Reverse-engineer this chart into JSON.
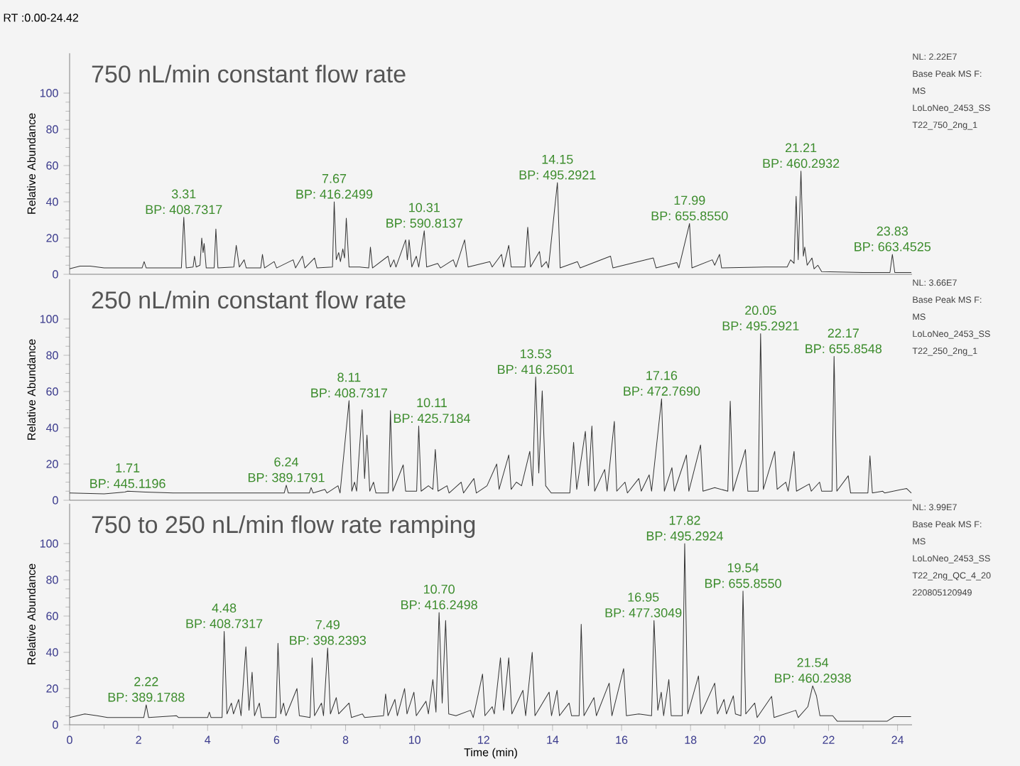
{
  "chart_data": [
    {
      "type": "line",
      "subtitle": "RT :0.00-24.42",
      "title": "750 nL/min constant flow rate",
      "ylabel": "Relative Abundance",
      "xlim": [
        0,
        24.42
      ],
      "ylim": [
        0,
        122
      ],
      "yticks": [
        0,
        20,
        40,
        60,
        80,
        100
      ],
      "tick_labels": "y",
      "series": [
        {
          "color": "#333333",
          "x": [
            0,
            0.3,
            0.6,
            1.0,
            2.1,
            2.16,
            2.22,
            3.24,
            3.31,
            3.38,
            3.58,
            3.62,
            3.67,
            3.78,
            3.83,
            3.87,
            3.9,
            3.96,
            4.19,
            4.24,
            4.3,
            4.76,
            4.83,
            4.92,
            5.06,
            5.12,
            5.54,
            5.59,
            5.65,
            5.93,
            6.0,
            6.48,
            6.55,
            6.75,
            6.82,
            7.1,
            7.17,
            7.62,
            7.67,
            7.73,
            7.8,
            7.85,
            7.92,
            7.97,
            8.02,
            8.1,
            8.41,
            8.67,
            8.72,
            8.78,
            9.23,
            9.3,
            9.4,
            9.46,
            9.74,
            9.79,
            9.84,
            9.92,
            10.05,
            10.12,
            10.28,
            10.35,
            10.67,
            10.75,
            11.12,
            11.2,
            11.45,
            11.55,
            12.18,
            12.25,
            12.52,
            12.58,
            12.73,
            12.8,
            13.2,
            13.28,
            13.36,
            13.62,
            13.68,
            13.82,
            13.88,
            14.14,
            14.22,
            14.72,
            14.8,
            15.68,
            15.75,
            16.92,
            17.0,
            17.6,
            17.66,
            17.97,
            18.04,
            18.63,
            18.7,
            18.84,
            18.9,
            20.17,
            20.8,
            20.9,
            21.0,
            21.06,
            21.12,
            21.2,
            21.27,
            21.31,
            21.38,
            21.52,
            21.58,
            21.69,
            21.8,
            23.0,
            23.78,
            23.85,
            23.92,
            24.4
          ],
          "values": [
            3,
            4.5,
            4.5,
            3.5,
            3.5,
            7,
            3.5,
            3.5,
            31.5,
            3.5,
            4,
            10,
            4,
            5,
            20,
            12,
            17,
            3.5,
            3.5,
            25,
            3.5,
            4,
            16,
            4,
            8,
            3.5,
            3.5,
            11,
            3.5,
            7,
            3.5,
            8,
            3.5,
            10,
            3.5,
            9,
            3.5,
            4,
            40,
            8,
            12,
            7,
            14,
            9,
            31,
            4,
            4,
            3.5,
            15,
            3.5,
            10,
            4,
            8,
            4,
            19,
            8,
            19,
            4,
            10,
            4,
            24,
            4,
            6,
            3.5,
            8,
            4,
            19,
            4,
            7,
            4,
            11,
            4,
            16,
            4,
            4,
            26,
            4,
            12.6,
            4,
            7,
            3.5,
            50.6,
            3.5,
            7,
            3.5,
            10,
            3.5,
            9,
            3.5,
            6.5,
            3.5,
            28,
            3.5,
            8,
            5,
            11,
            3.5,
            4,
            4,
            8,
            6,
            43,
            8,
            57,
            10,
            15,
            5,
            9,
            3,
            5,
            1.5,
            1,
            1,
            11,
            1,
            1
          ]
        }
      ],
      "annotations": [
        {
          "text": "3.31",
          "x": 3.31,
          "y": 31.5
        },
        {
          "text": "BP: 408.7317",
          "x": 3.31,
          "y": 31.5
        },
        {
          "text": "7.67",
          "x": 7.67,
          "y": 40
        },
        {
          "text": "BP: 416.2499",
          "x": 7.67,
          "y": 40
        },
        {
          "text": "10.31",
          "x": 10.28,
          "y": 24
        },
        {
          "text": "BP: 590.8137",
          "x": 10.28,
          "y": 24
        },
        {
          "text": "14.15",
          "x": 14.14,
          "y": 50.6
        },
        {
          "text": "BP: 495.2921",
          "x": 14.14,
          "y": 50.6
        },
        {
          "text": "17.99",
          "x": 17.97,
          "y": 28
        },
        {
          "text": "BP: 655.8550",
          "x": 17.97,
          "y": 28
        },
        {
          "text": "21.21",
          "x": 21.2,
          "y": 57
        },
        {
          "text": "BP: 460.2932",
          "x": 21.2,
          "y": 57
        },
        {
          "text": "23.83",
          "x": 23.85,
          "y": 11
        },
        {
          "text": "BP: 663.4525",
          "x": 23.85,
          "y": 11
        },
        "NL: 2.22E7",
        "Base Peak MS  F:",
        "MS",
        "LoLoNeo_2453_SS",
        "T22_750_2ng_1"
      ]
    },
    {
      "type": "line",
      "title": "250 nL/min constant flow rate",
      "ylabel": "Relative Abundance",
      "xlim": [
        0,
        24.42
      ],
      "ylim": [
        0,
        122
      ],
      "yticks": [
        0,
        20,
        40,
        60,
        80,
        100
      ],
      "tick_labels": "y",
      "series": [
        {
          "color": "#333333",
          "x": [
            0,
            1.0,
            1.6,
            1.68,
            2.2,
            3.0,
            5.8,
            6.22,
            6.28,
            6.34,
            6.95,
            7.0,
            7.06,
            7.4,
            7.46,
            7.78,
            7.84,
            8.1,
            8.18,
            8.26,
            8.32,
            8.48,
            8.55,
            8.62,
            8.7,
            8.81,
            8.88,
            9.24,
            9.3,
            9.37,
            9.67,
            9.74,
            10.06,
            10.12,
            10.19,
            10.4,
            10.53,
            10.6,
            10.68,
            10.94,
            11.0,
            11.35,
            11.42,
            11.72,
            11.79,
            12.1,
            12.38,
            12.45,
            12.73,
            12.8,
            12.95,
            13.1,
            13.34,
            13.42,
            13.51,
            13.6,
            13.7,
            13.8,
            13.96,
            14.5,
            14.61,
            14.7,
            14.95,
            15.04,
            15.14,
            15.22,
            15.51,
            15.58,
            15.79,
            15.86,
            16.1,
            16.17,
            16.5,
            16.57,
            16.8,
            16.87,
            17.16,
            17.24,
            17.46,
            17.53,
            17.88,
            17.95,
            18.29,
            18.36,
            18.7,
            19.08,
            19.15,
            19.23,
            19.59,
            19.66,
            19.96,
            20.03,
            20.11,
            20.44,
            20.51,
            20.76,
            20.83,
            21.0,
            21.07,
            21.44,
            21.5,
            21.74,
            21.8,
            22.1,
            22.16,
            22.24,
            22.57,
            22.64,
            23.14,
            23.2,
            23.27,
            23.57,
            23.63,
            24.26,
            24.4
          ],
          "values": [
            4,
            3.5,
            4.5,
            5,
            4.5,
            4,
            4,
            4,
            8.3,
            4,
            4,
            7,
            4,
            6,
            4,
            8,
            4,
            55,
            5,
            10,
            5,
            50,
            12,
            36,
            5,
            10,
            4,
            4,
            49.5,
            5,
            19.5,
            5,
            5,
            41,
            5,
            8,
            6,
            28,
            5,
            8,
            4,
            10,
            4,
            12,
            4,
            8,
            20,
            6,
            25,
            6,
            10,
            8,
            27,
            8,
            68,
            15,
            60.4,
            8,
            4,
            4,
            32,
            6,
            38,
            8,
            41,
            5,
            17,
            5,
            43.5,
            5,
            10,
            4,
            12,
            5,
            14,
            5,
            56,
            5,
            18,
            5,
            25,
            5,
            30.5,
            5,
            7,
            5,
            54.7,
            5,
            28,
            5,
            5,
            92,
            6,
            27,
            6,
            10,
            5,
            27,
            5,
            9,
            5,
            10,
            5,
            5,
            79.4,
            5,
            13.5,
            4,
            4,
            24.5,
            4,
            5,
            4,
            6.5,
            4
          ]
        }
      ],
      "annotations": [
        {
          "text": "1.71",
          "x": 1.68,
          "y": 5
        },
        {
          "text": "BP: 445.1196",
          "x": 1.68,
          "y": 5
        },
        {
          "text": "6.24",
          "x": 6.28,
          "y": 8.3
        },
        {
          "text": "BP: 389.1791",
          "x": 6.28,
          "y": 8.3
        },
        {
          "text": "8.11",
          "x": 8.1,
          "y": 55
        },
        {
          "text": "BP: 408.7317",
          "x": 8.1,
          "y": 55
        },
        {
          "text": "10.11",
          "x": 10.12,
          "y": 41
        },
        {
          "text": "BP: 425.7184",
          "x": 10.12,
          "y": 41
        },
        {
          "text": "13.53",
          "x": 13.51,
          "y": 68
        },
        {
          "text": "BP: 416.2501",
          "x": 13.51,
          "y": 68
        },
        {
          "text": "17.16",
          "x": 17.16,
          "y": 56
        },
        {
          "text": "BP: 472.7690",
          "x": 17.16,
          "y": 56
        },
        {
          "text": "20.05",
          "x": 20.03,
          "y": 92
        },
        {
          "text": "BP: 495.2921",
          "x": 20.03,
          "y": 92
        },
        {
          "text": "22.17",
          "x": 22.16,
          "y": 79.4
        },
        {
          "text": "BP: 655.8548",
          "x": 22.16,
          "y": 79.4
        },
        "NL: 3.66E7",
        "Base Peak MS  F:",
        "MS",
        "LoLoNeo_2453_SS",
        "T22_250_2ng_1"
      ]
    },
    {
      "type": "line",
      "title": "750 to 250 nL/min flow rate ramping",
      "xlabel": "Time (min)",
      "ylabel": "Relative Abundance",
      "xlim": [
        0,
        24.42
      ],
      "ylim": [
        0,
        122
      ],
      "xticks": [
        0,
        2,
        4,
        6,
        8,
        10,
        12,
        14,
        16,
        18,
        20,
        22,
        24
      ],
      "yticks": [
        0,
        20,
        40,
        60,
        80,
        100
      ],
      "series": [
        {
          "color": "#333333",
          "x": [
            0,
            0.44,
            0.8,
            1.1,
            2.15,
            2.22,
            2.29,
            3.1,
            3.16,
            4.0,
            4.05,
            4.1,
            4.42,
            4.48,
            4.56,
            4.69,
            4.75,
            4.9,
            4.97,
            5.11,
            5.2,
            5.29,
            5.36,
            5.5,
            5.56,
            5.98,
            6.04,
            6.12,
            6.2,
            6.27,
            6.59,
            6.66,
            6.97,
            7.03,
            7.1,
            7.3,
            7.36,
            7.48,
            7.56,
            7.73,
            7.8,
            8.1,
            8.17,
            8.49,
            8.55,
            9.1,
            9.16,
            9.23,
            9.43,
            9.5,
            9.71,
            9.78,
            9.98,
            10.05,
            10.33,
            10.4,
            10.53,
            10.62,
            10.71,
            10.8,
            10.9,
            10.99,
            11.2,
            11.62,
            11.7,
            11.97,
            12.04,
            12.25,
            12.31,
            12.49,
            12.58,
            12.73,
            12.82,
            13.14,
            13.22,
            13.41,
            13.49,
            13.9,
            13.97,
            14.13,
            14.2,
            14.48,
            14.55,
            14.77,
            14.83,
            14.91,
            15.2,
            15.27,
            15.64,
            15.72,
            16.06,
            16.14,
            16.5,
            16.87,
            16.94,
            17.05,
            17.15,
            17.22,
            17.37,
            17.44,
            17.76,
            17.83,
            17.92,
            18.23,
            18.3,
            18.7,
            18.78,
            18.97,
            19.04,
            19.24,
            19.3,
            19.46,
            19.52,
            19.6,
            19.86,
            19.93,
            20.35,
            20.42,
            21.05,
            21.12,
            21.4,
            21.54,
            21.65,
            21.75,
            22.12,
            22.25,
            22.4,
            23.7,
            23.9,
            24.39
          ],
          "values": [
            4,
            6,
            5,
            4,
            4,
            11,
            4,
            5,
            4,
            4,
            7,
            4,
            4,
            51.6,
            6,
            12,
            6,
            14,
            5,
            43,
            8,
            29,
            5,
            12,
            4,
            4,
            45,
            6,
            12,
            5,
            20,
            5,
            4,
            37,
            5,
            12,
            5,
            42.4,
            6,
            15,
            6,
            12,
            4,
            6,
            4,
            5,
            17,
            5,
            14,
            5,
            20,
            6,
            18,
            5,
            13,
            6,
            25,
            7,
            62,
            12,
            57.6,
            6,
            5,
            8,
            4,
            28,
            5,
            10,
            6,
            37,
            8,
            37,
            6,
            19,
            5,
            40,
            5,
            18,
            5,
            19,
            5,
            12,
            5,
            5,
            55.5,
            5,
            15,
            5,
            23,
            5,
            31,
            5,
            6,
            5,
            57.6,
            8,
            18,
            5,
            25,
            5,
            5,
            100,
            6,
            27,
            6,
            23,
            6,
            14,
            6,
            16,
            6,
            5,
            73.8,
            6,
            12,
            4,
            15.7,
            4,
            8,
            4,
            10,
            21.5,
            16,
            5,
            5,
            2,
            2,
            2,
            4.5,
            4.5
          ]
        }
      ],
      "annotations": [
        {
          "text": "2.22",
          "x": 2.22,
          "y": 11
        },
        {
          "text": "BP: 389.1788",
          "x": 2.22,
          "y": 11
        },
        {
          "text": "4.48",
          "x": 4.48,
          "y": 51.6
        },
        {
          "text": "BP: 408.7317",
          "x": 4.48,
          "y": 51.6
        },
        {
          "text": "7.49",
          "x": 7.48,
          "y": 42.4
        },
        {
          "text": "BP: 398.2393",
          "x": 7.48,
          "y": 42.4
        },
        {
          "text": "10.70",
          "x": 10.71,
          "y": 62
        },
        {
          "text": "BP: 416.2498",
          "x": 10.71,
          "y": 62
        },
        {
          "text": "16.95",
          "x": 16.94,
          "y": 57.6
        },
        {
          "text": "BP: 477.3049",
          "x": 16.94,
          "y": 57.6
        },
        {
          "text": "17.82",
          "x": 17.83,
          "y": 100
        },
        {
          "text": "BP: 495.2924",
          "x": 17.83,
          "y": 100
        },
        {
          "text": "19.54",
          "x": 19.52,
          "y": 73.8
        },
        {
          "text": "BP: 655.8550",
          "x": 19.52,
          "y": 73.8
        },
        {
          "text": "21.54",
          "x": 21.54,
          "y": 21.5
        },
        {
          "text": "BP: 460.2938",
          "x": 21.54,
          "y": 21.5
        },
        "NL: 3.99E7",
        "Base Peak MS  F:",
        "MS",
        "LoLoNeo_2453_SS",
        "T22_2ng_QC_4_20",
        "220805120949"
      ]
    }
  ]
}
